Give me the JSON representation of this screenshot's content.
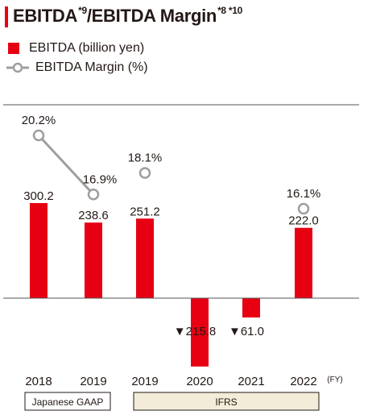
{
  "title": {
    "part1": "EBITDA",
    "note1": "*9",
    "part2": "/EBITDA Margin",
    "note2": "*8 *10"
  },
  "legend": {
    "bar_label": "EBITDA (billion yen)",
    "line_label": "EBITDA Margin (%)"
  },
  "chart_data": {
    "type": "bar",
    "categories": [
      "2018",
      "2019",
      "2019",
      "2020",
      "2021",
      "2022"
    ],
    "x_unit": "(FY)",
    "series": [
      {
        "name": "EBITDA (billion yen)",
        "type": "bar",
        "values": [
          300.2,
          238.6,
          251.2,
          -215.8,
          -61.0,
          222.0
        ],
        "labels": [
          "300.2",
          "238.6",
          "251.2",
          "▼215.8",
          "▼61.0",
          "222.0"
        ],
        "color": "#e60012"
      },
      {
        "name": "EBITDA Margin (%)",
        "type": "line",
        "values": [
          20.2,
          16.9,
          18.1,
          null,
          null,
          16.1
        ],
        "labels": [
          "20.2%",
          "16.9%",
          "18.1%",
          "",
          "",
          "16.1%"
        ],
        "color": "#9e9e9e"
      }
    ],
    "segments": [
      {
        "label": "Japanese GAAP",
        "categories": [
          "2018",
          "2019"
        ]
      },
      {
        "label": "IFRS",
        "categories": [
          "2019",
          "2020",
          "2021",
          "2022"
        ]
      }
    ],
    "grid": false,
    "legend_position": "top-left"
  }
}
